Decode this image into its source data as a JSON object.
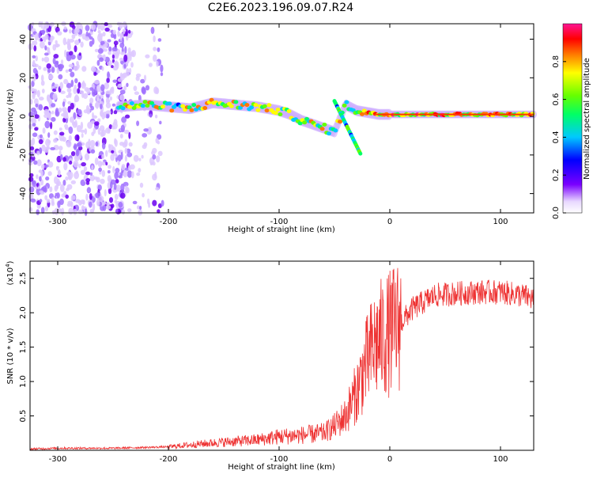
{
  "title": "C2E6.2023.196.09.07.R24",
  "chart_data": [
    {
      "type": "heatmap",
      "xlabel": "Height of straight line (km)",
      "ylabel": "Frequency (Hz)",
      "xlim": [
        -325,
        130
      ],
      "ylim": [
        -50,
        48
      ],
      "x_ticks": [
        -300,
        -200,
        -100,
        0,
        100
      ],
      "y_ticks": [
        -40,
        -20,
        0,
        20,
        40
      ],
      "colorbar": {
        "label": "Normalized spectral amplitude",
        "range": [
          0.0,
          1.0
        ],
        "ticks": [
          "0.0",
          "0.2",
          "0.4",
          "0.6",
          "0.8"
        ]
      },
      "features": [
        {
          "region": "noise",
          "x_range": [
            -325,
            -205
          ],
          "freq_range": [
            -50,
            48
          ],
          "amplitude": 0.15
        },
        {
          "region": "signal",
          "x": [
            -245,
            -220,
            -200,
            -180,
            -160,
            -140,
            -120,
            -100,
            -90,
            -80,
            -70,
            -60,
            -50,
            -40,
            -30,
            -20,
            -10,
            0,
            20,
            40,
            60,
            80,
            100,
            130
          ],
          "freq": [
            5,
            6,
            5,
            4,
            7,
            6,
            5,
            3,
            1,
            -2,
            -4,
            -6,
            -8,
            6,
            3,
            2,
            1,
            1,
            1,
            1,
            1,
            1,
            1,
            1
          ]
        }
      ]
    },
    {
      "type": "line",
      "xlabel": "Height of straight line (km)",
      "ylabel": "SNR (10 * v/v)",
      "y_exponent": "(x10",
      "y_exponent_power": "4",
      "y_exponent_close": ")",
      "xlim": [
        -325,
        130
      ],
      "ylim": [
        0,
        2.75
      ],
      "x_ticks": [
        -300,
        -200,
        -100,
        0,
        100
      ],
      "y_ticks": [
        "0.5",
        "1.0",
        "1.5",
        "2.0",
        "2.5"
      ],
      "series": [
        {
          "color": "#ee3333",
          "x": [
            -325,
            -300,
            -250,
            -200,
            -180,
            -150,
            -120,
            -100,
            -80,
            -60,
            -50,
            -40,
            -30,
            -25,
            -20,
            -15,
            -10,
            -5,
            0,
            10,
            20,
            30,
            40,
            60,
            80,
            100,
            120,
            130
          ],
          "y": [
            0.02,
            0.03,
            0.03,
            0.05,
            0.08,
            0.12,
            0.15,
            0.2,
            0.22,
            0.25,
            0.35,
            0.5,
            0.85,
            1.1,
            1.3,
            1.5,
            1.6,
            1.65,
            1.7,
            1.85,
            2.05,
            2.15,
            2.25,
            2.28,
            2.3,
            2.3,
            2.25,
            2.2
          ]
        }
      ]
    }
  ]
}
